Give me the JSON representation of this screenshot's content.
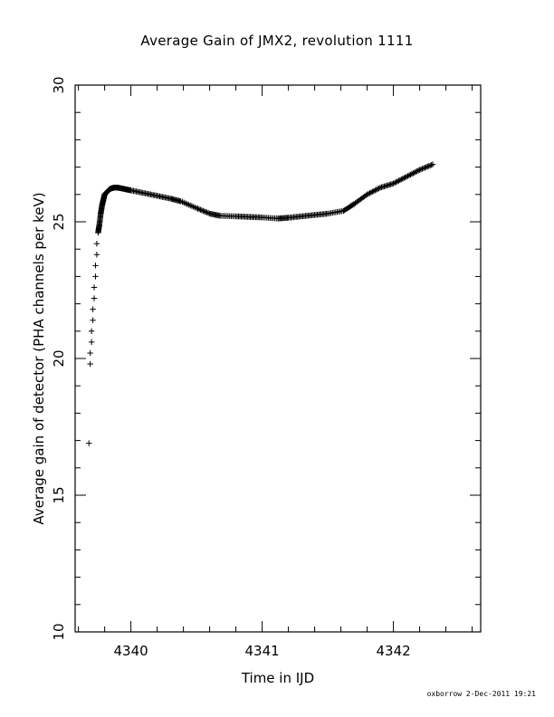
{
  "chart_data": {
    "type": "scatter",
    "title": "Average Gain of JMX2, revolution 1111",
    "xlabel": "Time in IJD",
    "ylabel": "Average gain of detector (PHA channels per keV)",
    "xlim": [
      4339.575,
      4342.665
    ],
    "ylim": [
      10,
      30
    ],
    "xticks": [
      "4340",
      "4341",
      "4342"
    ],
    "xtick_values": [
      4340,
      4341,
      4342
    ],
    "yticks": [
      "10",
      "15",
      "20",
      "25",
      "30"
    ],
    "ytick_values": [
      10,
      15,
      20,
      25,
      30
    ],
    "grid": false,
    "marker": "+",
    "series": [
      {
        "x": [
          4339.68,
          4339.69,
          4339.69,
          4339.7,
          4339.7,
          4339.71,
          4339.71,
          4339.72,
          4339.72,
          4339.73,
          4339.73,
          4339.74,
          4339.74,
          4339.75,
          4339.76,
          4339.77,
          4339.78,
          4339.79,
          4339.8,
          4339.82,
          4339.84,
          4339.87,
          4339.9,
          4339.95,
          4340.0,
          4340.1,
          4340.2,
          4340.3,
          4340.38,
          4340.5,
          4340.6,
          4340.68,
          4340.8,
          4340.9,
          4341.0,
          4341.12,
          4341.2,
          4341.3,
          4341.4,
          4341.5,
          4341.62,
          4341.7,
          4341.8,
          4341.9,
          4342.0,
          4342.1,
          4342.2,
          4342.3
        ],
        "y": [
          16.9,
          19.8,
          20.2,
          20.6,
          21.0,
          21.4,
          21.8,
          22.2,
          22.6,
          23.0,
          23.4,
          23.8,
          24.2,
          24.6,
          24.9,
          25.3,
          25.6,
          25.8,
          26.0,
          26.1,
          26.2,
          26.25,
          26.25,
          26.2,
          26.15,
          26.05,
          25.95,
          25.85,
          25.75,
          25.5,
          25.3,
          25.22,
          25.2,
          25.18,
          25.16,
          25.12,
          25.15,
          25.2,
          25.25,
          25.3,
          25.4,
          25.65,
          26.0,
          26.25,
          26.4,
          26.65,
          26.9,
          27.1
        ]
      }
    ]
  },
  "footer": {
    "credit": "oxborrow  2-Dec-2011 19:21"
  }
}
